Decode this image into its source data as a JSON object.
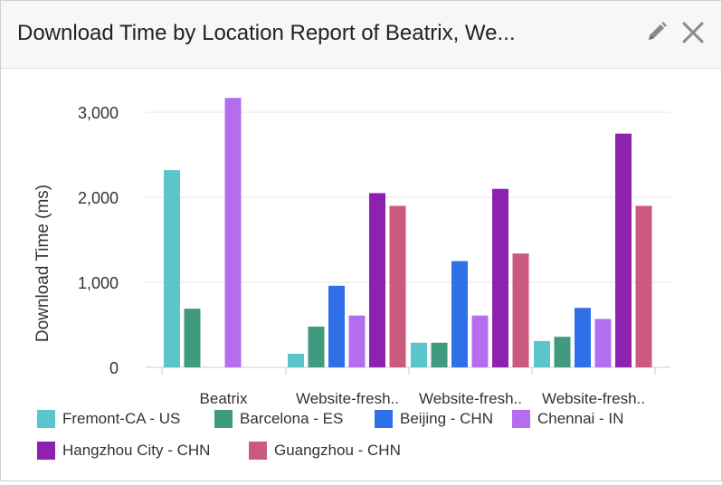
{
  "header": {
    "title": "Download Time by Location Report of Beatrix, We..."
  },
  "icons": {
    "edit": "pencil-icon",
    "close": "close-icon"
  },
  "colors": {
    "header_bg": "#f7f7f7",
    "icon": "#8a8a8a"
  },
  "chart_data": {
    "type": "bar",
    "ylabel": "Download Time (ms)",
    "xlabel": "",
    "ylim": [
      0,
      3300
    ],
    "yticks": [
      0,
      1000,
      2000,
      3000
    ],
    "ytick_labels": [
      "0",
      "1,000",
      "2,000",
      "3,000"
    ],
    "grid": true,
    "legend_position": "bottom",
    "categories": [
      "Beatrix",
      "Website-fresh..",
      "Website-fresh..",
      "Website-fresh.."
    ],
    "series": [
      {
        "name": "Fremont-CA - US",
        "color": "#5bc5cd",
        "values": [
          2320,
          160,
          290,
          310
        ]
      },
      {
        "name": "Barcelona - ES",
        "color": "#3f9a7f",
        "values": [
          690,
          480,
          290,
          360
        ]
      },
      {
        "name": "Beijing - CHN",
        "color": "#2f6fe8",
        "values": [
          null,
          960,
          1250,
          700
        ]
      },
      {
        "name": "Chennai - IN",
        "color": "#b56df0",
        "values": [
          3170,
          610,
          610,
          570
        ]
      },
      {
        "name": "Hangzhou City - CHN",
        "color": "#8e22b0",
        "values": [
          null,
          2050,
          2100,
          2750
        ]
      },
      {
        "name": "Guangzhou - CHN",
        "color": "#cc5a7e",
        "values": [
          null,
          1900,
          1340,
          1900
        ]
      }
    ]
  }
}
